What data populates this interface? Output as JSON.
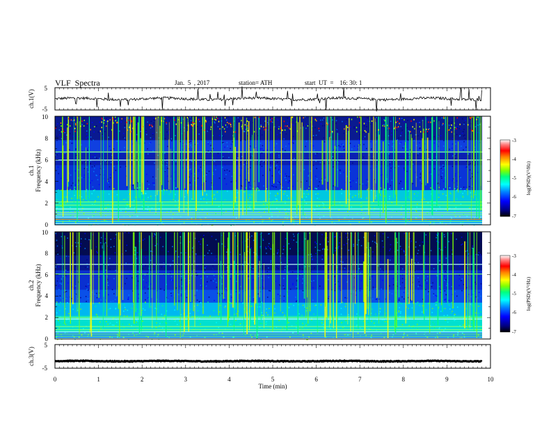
{
  "header": {
    "title": "VLF  Spectra",
    "date": "Jan.  5  , 2017",
    "station": "station= ATH",
    "start": "start  UT  =    16: 30: 1"
  },
  "chart_data": [
    {
      "type": "line",
      "panel": "ch1-waveform",
      "ylabel": "ch.1(V)",
      "ylim": [
        -5,
        5
      ],
      "yticks": [
        "5",
        "-5"
      ],
      "xlim": [
        0,
        10
      ],
      "x_end": 9.8,
      "baseline": 0,
      "color": "#000000"
    },
    {
      "type": "heatmap",
      "panel": "ch1-spectrogram",
      "ylabel_channel": "ch.1",
      "ylabel": "Frequency  (kHz)",
      "ylim": [
        0,
        10
      ],
      "yticks": [
        "0",
        "2",
        "4",
        "6",
        "8",
        "10"
      ],
      "xlim": [
        0,
        10
      ],
      "colorbar": {
        "label": "log(PSD)(V²/Hz)",
        "range": [
          -7,
          -3
        ],
        "ticks": [
          "-3",
          "-4",
          "-5",
          "-6",
          "-7"
        ],
        "colormap": [
          "#000000",
          "#000080",
          "#0000ff",
          "#0080ff",
          "#00ffff",
          "#00ff80",
          "#80ff00",
          "#ffff00",
          "#ff8000",
          "#ff0000",
          "#ff8080",
          "#ffffff"
        ]
      }
    },
    {
      "type": "heatmap",
      "panel": "ch2-spectrogram",
      "ylabel_channel": "ch.2",
      "ylabel": "Frequency  (kHz)",
      "ylim": [
        0,
        10
      ],
      "yticks": [
        "0",
        "2",
        "4",
        "6",
        "8",
        "10"
      ],
      "xlim": [
        0,
        10
      ],
      "colorbar": {
        "label": "log(PSD)(V²/Hz)",
        "range": [
          -7,
          -3
        ],
        "ticks": [
          "-3",
          "-4",
          "-5",
          "-6",
          "-7"
        ]
      }
    },
    {
      "type": "line",
      "panel": "ch3-waveform",
      "ylabel": "ch.3(V)",
      "ylim": [
        -5,
        5
      ],
      "yticks": [
        "5",
        "-5"
      ],
      "xlim": [
        0,
        10
      ],
      "x_end": 9.8,
      "baseline": -2,
      "color": "#000000"
    }
  ],
  "x_axis": {
    "label": "Time  (min)",
    "ticks": [
      "0",
      "1",
      "2",
      "3",
      "4",
      "5",
      "6",
      "7",
      "8",
      "9",
      "10"
    ]
  }
}
